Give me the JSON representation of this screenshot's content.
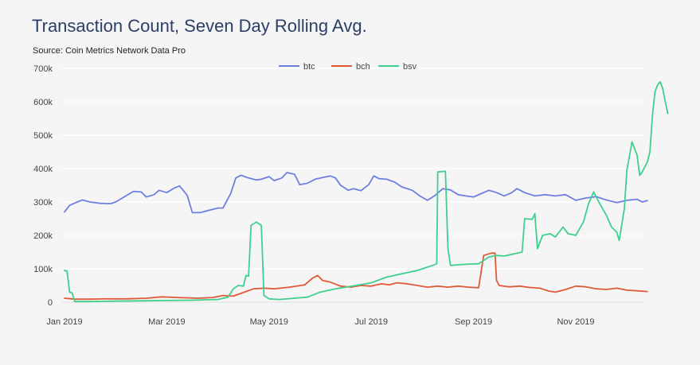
{
  "chart_data": {
    "type": "line",
    "title": "Transaction Count, Seven Day Rolling Avg.",
    "subtitle": "Source: Coin Metrics Network Data Pro",
    "xlabel": "",
    "ylabel": "",
    "legend_position": "top-center",
    "grid": true,
    "x_ticks": [
      {
        "label": "Jan 2019",
        "month": 0
      },
      {
        "label": "Mar 2019",
        "month": 2
      },
      {
        "label": "May 2019",
        "month": 4
      },
      {
        "label": "Jul 2019",
        "month": 6
      },
      {
        "label": "Sep 2019",
        "month": 8
      },
      {
        "label": "Nov 2019",
        "month": 10
      }
    ],
    "xlim_months": [
      0,
      11.55
    ],
    "y_ticks": [
      0,
      100000,
      200000,
      300000,
      400000,
      500000,
      600000,
      700000
    ],
    "y_tick_labels": [
      "0",
      "100k",
      "200k",
      "300k",
      "400k",
      "500k",
      "600k",
      "700k"
    ],
    "ylim": [
      0,
      700000
    ],
    "series": [
      {
        "name": "btc",
        "color": "#6f7fe0",
        "points": [
          [
            0.0,
            270000
          ],
          [
            0.1,
            290000
          ],
          [
            0.25,
            300000
          ],
          [
            0.35,
            306000
          ],
          [
            0.5,
            300000
          ],
          [
            0.7,
            296000
          ],
          [
            0.9,
            295000
          ],
          [
            1.0,
            300000
          ],
          [
            1.2,
            318000
          ],
          [
            1.35,
            332000
          ],
          [
            1.5,
            330000
          ],
          [
            1.6,
            315000
          ],
          [
            1.75,
            322000
          ],
          [
            1.85,
            335000
          ],
          [
            2.0,
            328000
          ],
          [
            2.15,
            342000
          ],
          [
            2.25,
            348000
          ],
          [
            2.4,
            320000
          ],
          [
            2.5,
            268000
          ],
          [
            2.65,
            268000
          ],
          [
            2.8,
            274000
          ],
          [
            3.0,
            282000
          ],
          [
            3.1,
            282000
          ],
          [
            3.25,
            325000
          ],
          [
            3.35,
            372000
          ],
          [
            3.45,
            380000
          ],
          [
            3.6,
            372000
          ],
          [
            3.75,
            366000
          ],
          [
            3.85,
            368000
          ],
          [
            4.0,
            376000
          ],
          [
            4.1,
            364000
          ],
          [
            4.25,
            372000
          ],
          [
            4.35,
            388000
          ],
          [
            4.5,
            383000
          ],
          [
            4.6,
            352000
          ],
          [
            4.75,
            356000
          ],
          [
            4.9,
            368000
          ],
          [
            5.05,
            373000
          ],
          [
            5.2,
            378000
          ],
          [
            5.3,
            372000
          ],
          [
            5.4,
            350000
          ],
          [
            5.55,
            335000
          ],
          [
            5.65,
            340000
          ],
          [
            5.8,
            334000
          ],
          [
            5.95,
            352000
          ],
          [
            6.05,
            378000
          ],
          [
            6.15,
            370000
          ],
          [
            6.3,
            368000
          ],
          [
            6.45,
            360000
          ],
          [
            6.6,
            345000
          ],
          [
            6.8,
            335000
          ],
          [
            6.95,
            318000
          ],
          [
            7.1,
            305000
          ],
          [
            7.25,
            320000
          ],
          [
            7.4,
            340000
          ],
          [
            7.55,
            336000
          ],
          [
            7.7,
            322000
          ],
          [
            7.85,
            318000
          ],
          [
            8.0,
            315000
          ],
          [
            8.15,
            325000
          ],
          [
            8.3,
            335000
          ],
          [
            8.45,
            328000
          ],
          [
            8.6,
            318000
          ],
          [
            8.75,
            328000
          ],
          [
            8.85,
            340000
          ],
          [
            9.0,
            328000
          ],
          [
            9.2,
            318000
          ],
          [
            9.4,
            322000
          ],
          [
            9.6,
            318000
          ],
          [
            9.8,
            322000
          ],
          [
            10.0,
            305000
          ],
          [
            10.2,
            312000
          ],
          [
            10.4,
            316000
          ],
          [
            10.6,
            306000
          ],
          [
            10.8,
            298000
          ],
          [
            11.0,
            305000
          ],
          [
            11.2,
            308000
          ],
          [
            11.3,
            300000
          ],
          [
            11.4,
            304000
          ]
        ]
      },
      {
        "name": "bch",
        "color": "#e05a3a",
        "points": [
          [
            0.0,
            12000
          ],
          [
            0.2,
            9000
          ],
          [
            0.5,
            9000
          ],
          [
            0.8,
            10000
          ],
          [
            1.2,
            10000
          ],
          [
            1.6,
            12000
          ],
          [
            1.9,
            16000
          ],
          [
            2.2,
            14000
          ],
          [
            2.6,
            12000
          ],
          [
            2.9,
            14000
          ],
          [
            3.1,
            20000
          ],
          [
            3.3,
            18000
          ],
          [
            3.55,
            32000
          ],
          [
            3.7,
            40000
          ],
          [
            3.9,
            42000
          ],
          [
            4.1,
            40000
          ],
          [
            4.4,
            45000
          ],
          [
            4.7,
            52000
          ],
          [
            4.85,
            72000
          ],
          [
            4.95,
            80000
          ],
          [
            5.05,
            65000
          ],
          [
            5.2,
            60000
          ],
          [
            5.4,
            48000
          ],
          [
            5.6,
            45000
          ],
          [
            5.8,
            50000
          ],
          [
            6.0,
            48000
          ],
          [
            6.2,
            55000
          ],
          [
            6.35,
            52000
          ],
          [
            6.5,
            58000
          ],
          [
            6.7,
            55000
          ],
          [
            6.9,
            50000
          ],
          [
            7.1,
            45000
          ],
          [
            7.3,
            48000
          ],
          [
            7.5,
            45000
          ],
          [
            7.7,
            48000
          ],
          [
            7.9,
            45000
          ],
          [
            8.1,
            43000
          ],
          [
            8.2,
            140000
          ],
          [
            8.35,
            147000
          ],
          [
            8.42,
            147000
          ],
          [
            8.45,
            65000
          ],
          [
            8.5,
            50000
          ],
          [
            8.7,
            46000
          ],
          [
            8.9,
            48000
          ],
          [
            9.1,
            44000
          ],
          [
            9.3,
            42000
          ],
          [
            9.45,
            34000
          ],
          [
            9.6,
            30000
          ],
          [
            9.8,
            38000
          ],
          [
            10.0,
            48000
          ],
          [
            10.2,
            46000
          ],
          [
            10.4,
            40000
          ],
          [
            10.6,
            38000
          ],
          [
            10.8,
            42000
          ],
          [
            11.0,
            36000
          ],
          [
            11.2,
            34000
          ],
          [
            11.4,
            32000
          ]
        ]
      },
      {
        "name": "bsv",
        "color": "#3fcf8e",
        "points": [
          [
            0.0,
            95000
          ],
          [
            0.05,
            93000
          ],
          [
            0.1,
            30000
          ],
          [
            0.15,
            28000
          ],
          [
            0.2,
            2000
          ],
          [
            0.5,
            2000
          ],
          [
            1.0,
            3000
          ],
          [
            1.5,
            4000
          ],
          [
            2.0,
            5000
          ],
          [
            2.5,
            6000
          ],
          [
            3.0,
            8000
          ],
          [
            3.2,
            15000
          ],
          [
            3.3,
            40000
          ],
          [
            3.4,
            50000
          ],
          [
            3.5,
            48000
          ],
          [
            3.55,
            80000
          ],
          [
            3.6,
            78000
          ],
          [
            3.65,
            230000
          ],
          [
            3.75,
            240000
          ],
          [
            3.85,
            230000
          ],
          [
            3.9,
            20000
          ],
          [
            4.0,
            10000
          ],
          [
            4.2,
            8000
          ],
          [
            4.5,
            12000
          ],
          [
            4.75,
            15000
          ],
          [
            5.0,
            30000
          ],
          [
            5.3,
            40000
          ],
          [
            5.5,
            45000
          ],
          [
            5.7,
            50000
          ],
          [
            6.0,
            58000
          ],
          [
            6.3,
            75000
          ],
          [
            6.6,
            85000
          ],
          [
            6.9,
            95000
          ],
          [
            7.1,
            105000
          ],
          [
            7.2,
            110000
          ],
          [
            7.28,
            115000
          ],
          [
            7.3,
            390000
          ],
          [
            7.45,
            392000
          ],
          [
            7.5,
            160000
          ],
          [
            7.55,
            110000
          ],
          [
            7.7,
            112000
          ],
          [
            7.9,
            114000
          ],
          [
            8.1,
            115000
          ],
          [
            8.3,
            135000
          ],
          [
            8.45,
            140000
          ],
          [
            8.6,
            138000
          ],
          [
            8.8,
            145000
          ],
          [
            8.95,
            150000
          ],
          [
            9.0,
            250000
          ],
          [
            9.15,
            248000
          ],
          [
            9.2,
            265000
          ],
          [
            9.25,
            160000
          ],
          [
            9.35,
            200000
          ],
          [
            9.5,
            205000
          ],
          [
            9.6,
            195000
          ],
          [
            9.75,
            225000
          ],
          [
            9.85,
            205000
          ],
          [
            10.0,
            200000
          ],
          [
            10.15,
            240000
          ],
          [
            10.25,
            295000
          ],
          [
            10.35,
            330000
          ],
          [
            10.45,
            300000
          ],
          [
            10.6,
            260000
          ],
          [
            10.7,
            225000
          ],
          [
            10.8,
            210000
          ],
          [
            10.85,
            185000
          ],
          [
            10.95,
            280000
          ],
          [
            11.0,
            395000
          ],
          [
            11.1,
            480000
          ],
          [
            11.2,
            440000
          ],
          [
            11.25,
            380000
          ],
          [
            11.3,
            390000
          ],
          [
            11.4,
            420000
          ],
          [
            11.45,
            450000
          ],
          [
            11.5,
            560000
          ],
          [
            11.55,
            630000
          ],
          [
            11.6,
            650000
          ],
          [
            11.65,
            660000
          ],
          [
            11.7,
            640000
          ],
          [
            11.75,
            600000
          ],
          [
            11.8,
            565000
          ]
        ]
      }
    ]
  }
}
